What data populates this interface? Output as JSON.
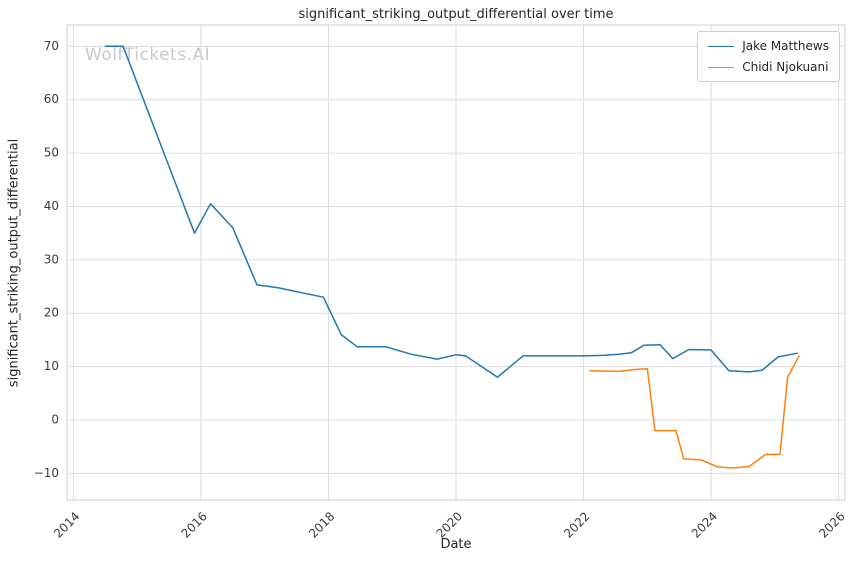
{
  "watermark": "WolfTickets.AI",
  "chart_data": {
    "type": "line",
    "title": "significant_striking_output_differential over time",
    "xlabel": "Date",
    "ylabel": "significant_striking_output_differential",
    "xlim": [
      2013.9,
      2026.1
    ],
    "ylim": [
      -15,
      74
    ],
    "xticks": [
      2014,
      2016,
      2018,
      2020,
      2022,
      2024,
      2026
    ],
    "yticks": [
      -10,
      0,
      10,
      20,
      30,
      40,
      50,
      60,
      70
    ],
    "grid": true,
    "grid_color": "#dcdcdc",
    "frame_color": "#cccccc",
    "legend_position": "upper right",
    "series": [
      {
        "name": "Jake Matthews",
        "color": "#1f77b4",
        "points": [
          [
            2014.5,
            70
          ],
          [
            2014.78,
            70
          ],
          [
            2015.9,
            35
          ],
          [
            2016.15,
            40.5
          ],
          [
            2016.5,
            36
          ],
          [
            2016.88,
            25.3
          ],
          [
            2017.2,
            24.8
          ],
          [
            2017.92,
            23
          ],
          [
            2018.2,
            16
          ],
          [
            2018.45,
            13.7
          ],
          [
            2018.9,
            13.7
          ],
          [
            2019.3,
            12.3
          ],
          [
            2019.7,
            11.4
          ],
          [
            2020.0,
            12.2
          ],
          [
            2020.15,
            12.0
          ],
          [
            2020.65,
            8
          ],
          [
            2021.05,
            12
          ],
          [
            2021.5,
            12
          ],
          [
            2022.0,
            12
          ],
          [
            2022.3,
            12.1
          ],
          [
            2022.55,
            12.3
          ],
          [
            2022.75,
            12.6
          ],
          [
            2022.95,
            14
          ],
          [
            2023.2,
            14.1
          ],
          [
            2023.4,
            11.5
          ],
          [
            2023.65,
            13.2
          ],
          [
            2024.0,
            13.1
          ],
          [
            2024.28,
            9.2
          ],
          [
            2024.6,
            9
          ],
          [
            2024.8,
            9.3
          ],
          [
            2025.05,
            11.8
          ],
          [
            2025.35,
            12.5
          ]
        ]
      },
      {
        "name": "Chidi Njokuani",
        "color": "#ff7f0e",
        "points": [
          [
            2022.1,
            9.2
          ],
          [
            2022.55,
            9.1
          ],
          [
            2022.85,
            9.5
          ],
          [
            2023.0,
            9.6
          ],
          [
            2023.12,
            -2
          ],
          [
            2023.45,
            -2
          ],
          [
            2023.57,
            -7.3
          ],
          [
            2023.85,
            -7.5
          ],
          [
            2024.1,
            -8.8
          ],
          [
            2024.35,
            -9
          ],
          [
            2024.6,
            -8.7
          ],
          [
            2024.85,
            -6.5
          ],
          [
            2025.08,
            -6.4
          ],
          [
            2025.2,
            8
          ],
          [
            2025.38,
            12
          ]
        ]
      }
    ]
  }
}
